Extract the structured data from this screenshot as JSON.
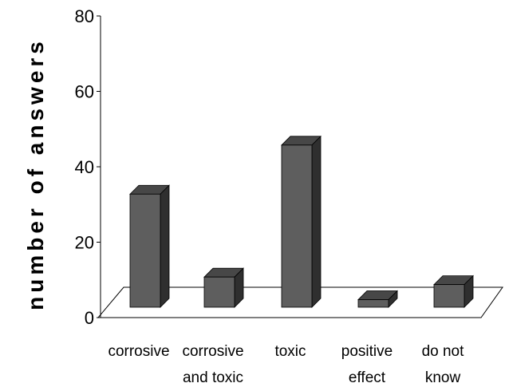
{
  "chart_data": {
    "type": "bar",
    "title": "",
    "xlabel": "",
    "ylabel": "number of answers",
    "ylim": [
      0,
      80
    ],
    "yticks": [
      0,
      20,
      40,
      60,
      80
    ],
    "grid": false,
    "legend": "none",
    "style": "3d-column",
    "categories": [
      [
        "corrosive"
      ],
      [
        "corrosive",
        "and toxic"
      ],
      [
        "toxic"
      ],
      [
        "positive",
        "effect"
      ],
      [
        "do not",
        "know"
      ]
    ],
    "values": [
      30,
      8,
      43,
      2,
      6
    ],
    "colors": {
      "front": "#5e5e5e",
      "top": "#474747",
      "side": "#2f2f2f",
      "outline": "#000000"
    }
  }
}
